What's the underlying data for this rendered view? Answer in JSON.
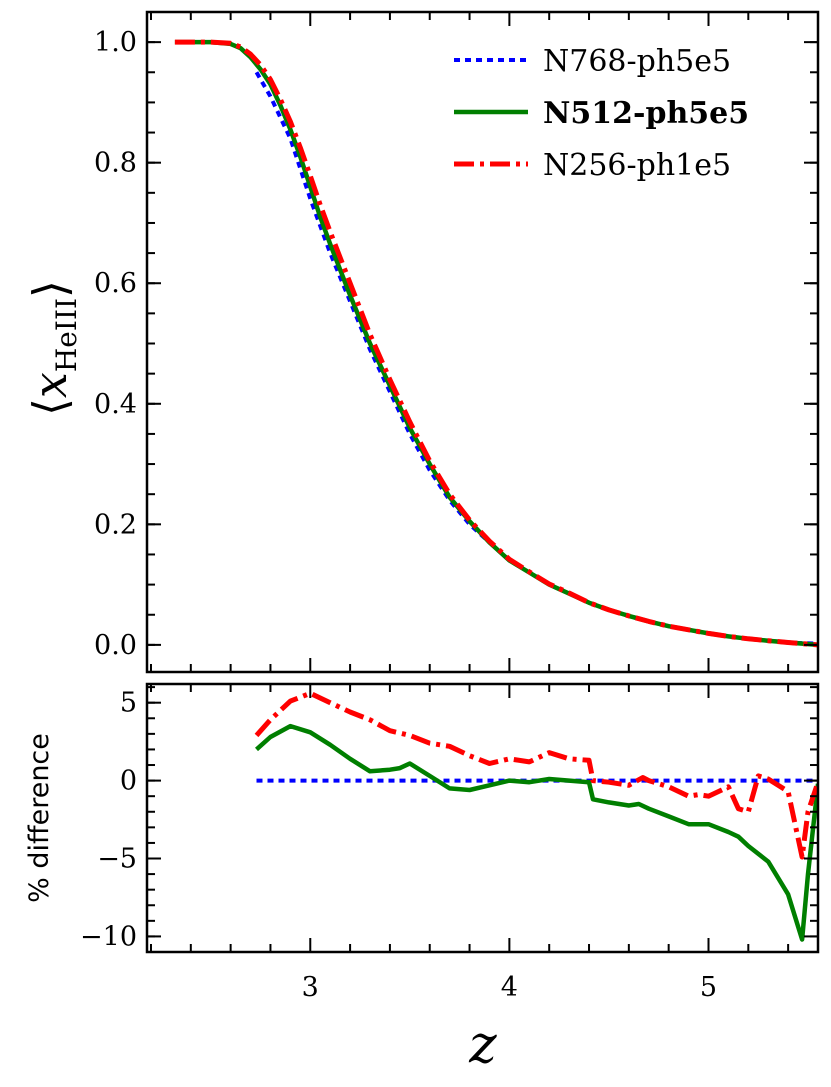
{
  "chart_data": [
    {
      "type": "line",
      "panel": "top",
      "ylabel": {
        "prefix": "⟨",
        "var": "x",
        "sub": "HeIII",
        "suffix": "⟩"
      },
      "xlim": [
        2.18,
        5.55
      ],
      "ylim": [
        -0.045,
        1.05
      ],
      "yticks": [
        0.0,
        0.2,
        0.4,
        0.6,
        0.8,
        1.0
      ],
      "ytick_labels": [
        "0.0",
        "0.2",
        "0.4",
        "0.6",
        "0.8",
        "1.0"
      ],
      "legend": "top-right",
      "series": [
        {
          "name": "N768-ph5e5",
          "color": "#0000ff",
          "style": "dotted",
          "bold": false,
          "x": [
            2.73,
            2.8,
            2.9,
            3.0,
            3.1,
            3.2,
            3.3,
            3.4,
            3.5,
            3.6,
            3.7,
            3.8,
            3.9,
            4.0,
            4.1,
            4.2,
            4.3,
            4.4,
            4.5,
            4.6,
            4.7,
            4.8,
            4.9,
            5.0,
            5.1,
            5.2,
            5.3,
            5.4,
            5.55
          ],
          "y": [
            0.95,
            0.91,
            0.84,
            0.74,
            0.65,
            0.57,
            0.49,
            0.42,
            0.35,
            0.29,
            0.24,
            0.2,
            0.17,
            0.14,
            0.12,
            0.1,
            0.085,
            0.07,
            0.058,
            0.048,
            0.039,
            0.031,
            0.025,
            0.019,
            0.014,
            0.01,
            0.007,
            0.004,
            0.002
          ]
        },
        {
          "name": "N512-ph5e5",
          "color": "#007f00",
          "style": "solid",
          "bold": true,
          "x": [
            2.32,
            2.4,
            2.5,
            2.6,
            2.65,
            2.7,
            2.75,
            2.8,
            2.85,
            2.9,
            2.95,
            3.0,
            3.05,
            3.1,
            3.2,
            3.3,
            3.4,
            3.5,
            3.6,
            3.7,
            3.8,
            3.9,
            4.0,
            4.1,
            4.2,
            4.3,
            4.4,
            4.5,
            4.6,
            4.7,
            4.8,
            4.9,
            5.0,
            5.1,
            5.2,
            5.3,
            5.4,
            5.55
          ],
          "y": [
            1.0,
            1.0,
            1.0,
            0.997,
            0.99,
            0.975,
            0.955,
            0.93,
            0.895,
            0.855,
            0.81,
            0.76,
            0.71,
            0.665,
            0.58,
            0.5,
            0.43,
            0.36,
            0.3,
            0.245,
            0.205,
            0.17,
            0.14,
            0.12,
            0.1,
            0.085,
            0.07,
            0.058,
            0.048,
            0.039,
            0.031,
            0.025,
            0.019,
            0.014,
            0.01,
            0.007,
            0.004,
            0.0
          ]
        },
        {
          "name": "N256-ph1e5",
          "color": "#ff0000",
          "style": "dashdot",
          "bold": false,
          "x": [
            2.32,
            2.4,
            2.5,
            2.6,
            2.65,
            2.7,
            2.75,
            2.8,
            2.85,
            2.9,
            2.95,
            3.0,
            3.05,
            3.1,
            3.2,
            3.3,
            3.4,
            3.5,
            3.6,
            3.7,
            3.8,
            3.9,
            4.0,
            4.1,
            4.2,
            4.3,
            4.4,
            4.5,
            4.6,
            4.7,
            4.8,
            4.9,
            5.0,
            5.1,
            5.2,
            5.3,
            5.4,
            5.55
          ],
          "y": [
            1.0,
            1.0,
            1.0,
            0.998,
            0.992,
            0.98,
            0.962,
            0.938,
            0.905,
            0.868,
            0.825,
            0.778,
            0.73,
            0.685,
            0.6,
            0.515,
            0.44,
            0.37,
            0.305,
            0.25,
            0.207,
            0.172,
            0.142,
            0.121,
            0.101,
            0.086,
            0.07,
            0.058,
            0.048,
            0.039,
            0.031,
            0.025,
            0.019,
            0.014,
            0.01,
            0.007,
            0.004,
            0.0
          ]
        }
      ]
    },
    {
      "type": "line",
      "panel": "bottom",
      "ylabel": "% difference",
      "xlabel": "z",
      "xlim": [
        2.18,
        5.55
      ],
      "ylim": [
        -11.0,
        6.2
      ],
      "xticks": [
        3,
        4,
        5
      ],
      "xtick_labels": [
        "3",
        "4",
        "5"
      ],
      "yticks": [
        -10,
        -5,
        0,
        5
      ],
      "ytick_labels": [
        "−10",
        "−5",
        "0",
        "5"
      ],
      "series": [
        {
          "name": "N768-ph5e5",
          "color": "#0000ff",
          "style": "dotted",
          "x": [
            2.73,
            5.55
          ],
          "y": [
            0.0,
            0.0
          ]
        },
        {
          "name": "N512-ph5e5",
          "color": "#007f00",
          "style": "solid",
          "x": [
            2.73,
            2.8,
            2.9,
            3.0,
            3.1,
            3.2,
            3.3,
            3.4,
            3.45,
            3.5,
            3.6,
            3.7,
            3.8,
            3.9,
            4.0,
            4.1,
            4.2,
            4.3,
            4.4,
            4.42,
            4.5,
            4.6,
            4.65,
            4.7,
            4.8,
            4.9,
            4.95,
            5.0,
            5.1,
            5.15,
            5.2,
            5.3,
            5.4,
            5.47,
            5.5,
            5.55
          ],
          "y": [
            2.0,
            2.8,
            3.5,
            3.1,
            2.3,
            1.4,
            0.6,
            0.7,
            0.8,
            1.1,
            0.3,
            -0.5,
            -0.6,
            -0.3,
            0.0,
            -0.1,
            0.1,
            0.0,
            -0.1,
            -1.2,
            -1.4,
            -1.6,
            -1.5,
            -1.8,
            -2.3,
            -2.8,
            -2.8,
            -2.8,
            -3.3,
            -3.6,
            -4.2,
            -5.2,
            -7.3,
            -10.2,
            -6.0,
            -0.2
          ]
        },
        {
          "name": "N256-ph1e5",
          "color": "#ff0000",
          "style": "dashdot",
          "x": [
            2.73,
            2.8,
            2.9,
            3.0,
            3.1,
            3.2,
            3.3,
            3.4,
            3.5,
            3.6,
            3.7,
            3.8,
            3.9,
            4.0,
            4.1,
            4.2,
            4.3,
            4.4,
            4.42,
            4.5,
            4.6,
            4.67,
            4.7,
            4.8,
            4.9,
            4.95,
            5.0,
            5.1,
            5.15,
            5.2,
            5.25,
            5.3,
            5.4,
            5.47,
            5.5,
            5.55
          ],
          "y": [
            2.9,
            3.9,
            5.1,
            5.6,
            5.0,
            4.4,
            3.9,
            3.2,
            2.9,
            2.4,
            2.2,
            1.6,
            1.1,
            1.4,
            1.2,
            1.8,
            1.4,
            1.3,
            0.0,
            -0.1,
            -0.3,
            0.2,
            0.0,
            -0.4,
            -1.0,
            -0.9,
            -1.0,
            -0.4,
            -1.8,
            -2.0,
            0.3,
            0.1,
            -0.7,
            -4.9,
            -2.0,
            -0.1
          ]
        }
      ]
    }
  ]
}
